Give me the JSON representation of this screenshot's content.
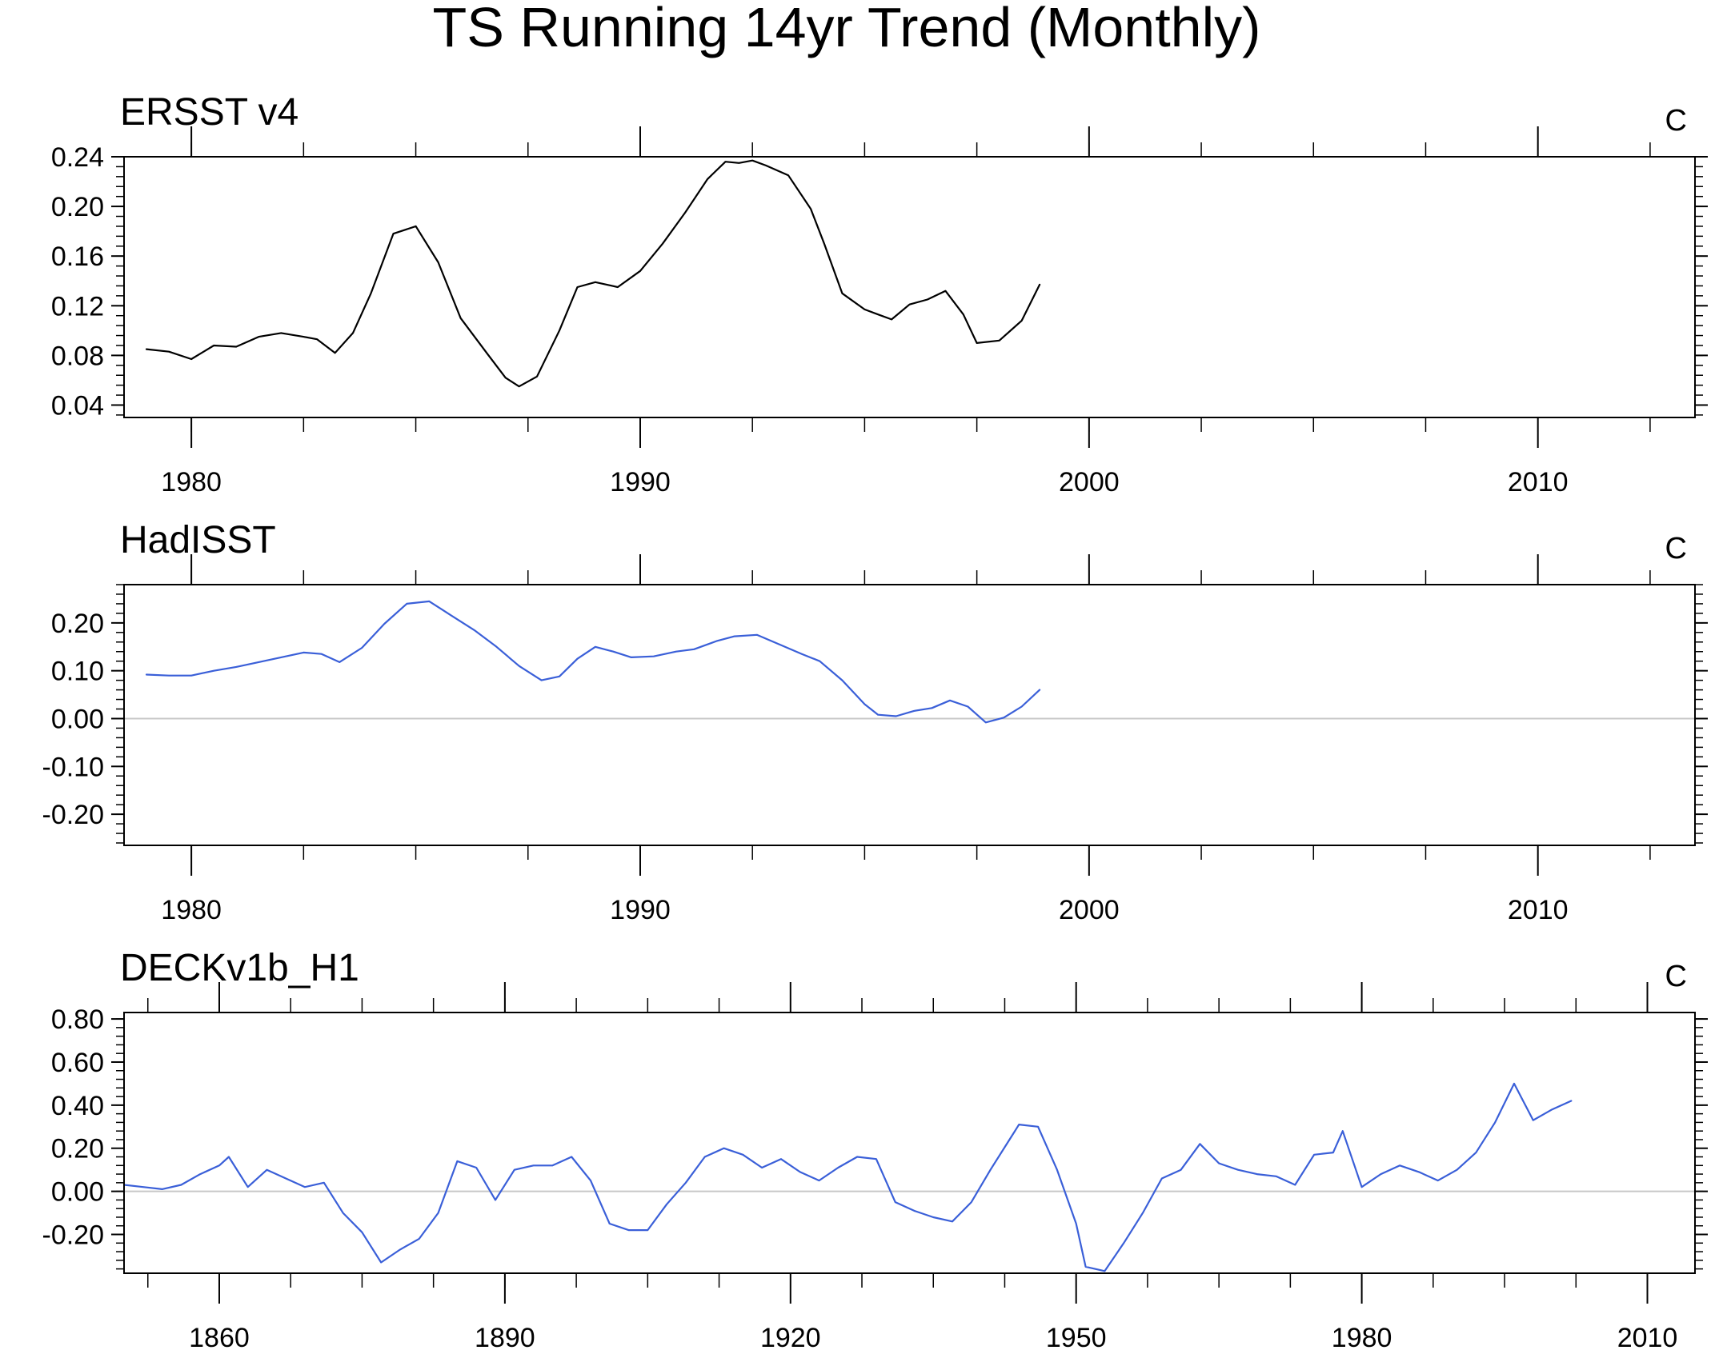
{
  "figure": {
    "title": "TS Running 14yr Trend (Monthly)"
  },
  "chart_data": [
    {
      "type": "line",
      "title": "ERSST v4",
      "units": "C",
      "xlabel": "",
      "ylabel": "",
      "xlim": [
        1978.5,
        2013.5
      ],
      "ylim": [
        0.03,
        0.24
      ],
      "x_ticks": [
        1980,
        1990,
        2000,
        2010
      ],
      "x_tick_labels": [
        "1980",
        "1990",
        "2000",
        "2010"
      ],
      "y_ticks": [
        0.04,
        0.08,
        0.12,
        0.16,
        0.2,
        0.24
      ],
      "y_tick_labels": [
        "0.04",
        "0.08",
        "0.12",
        "0.16",
        "0.20",
        "0.24"
      ],
      "zero_line": false,
      "grid": false,
      "legend": "none",
      "series": [
        {
          "color": "#000000",
          "x": [
            1979.0,
            1979.5,
            1980.0,
            1980.5,
            1981.0,
            1981.5,
            1982.0,
            1982.5,
            1982.8,
            1983.2,
            1983.6,
            1984.0,
            1984.5,
            1985.0,
            1985.5,
            1986.0,
            1986.6,
            1987.0,
            1987.3,
            1987.7,
            1988.2,
            1988.6,
            1989.0,
            1989.5,
            1990.0,
            1990.5,
            1991.0,
            1991.5,
            1991.9,
            1992.2,
            1992.5,
            1992.8,
            1993.3,
            1993.8,
            1994.1,
            1994.5,
            1995.0,
            1995.3,
            1995.6,
            1996.0,
            1996.4,
            1996.8,
            1997.2,
            1997.5,
            1998.0,
            1998.5,
            1998.9
          ],
          "y": [
            0.085,
            0.083,
            0.077,
            0.088,
            0.087,
            0.095,
            0.098,
            0.095,
            0.093,
            0.082,
            0.098,
            0.13,
            0.178,
            0.184,
            0.155,
            0.11,
            0.081,
            0.062,
            0.055,
            0.063,
            0.1,
            0.135,
            0.139,
            0.135,
            0.148,
            0.17,
            0.195,
            0.222,
            0.236,
            0.235,
            0.237,
            0.233,
            0.225,
            0.198,
            0.17,
            0.13,
            0.117,
            0.113,
            0.109,
            0.121,
            0.125,
            0.132,
            0.113,
            0.09,
            0.092,
            0.108,
            0.137
          ]
        }
      ]
    },
    {
      "type": "line",
      "title": "HadISST",
      "units": "C",
      "xlabel": "",
      "ylabel": "",
      "xlim": [
        1978.5,
        2013.5
      ],
      "ylim": [
        -0.265,
        0.28
      ],
      "x_ticks": [
        1980,
        1990,
        2000,
        2010
      ],
      "x_tick_labels": [
        "1980",
        "1990",
        "2000",
        "2010"
      ],
      "y_ticks": [
        -0.2,
        -0.1,
        0.0,
        0.1,
        0.2
      ],
      "y_tick_labels": [
        "-0.20",
        "-0.10",
        "0.00",
        "0.10",
        "0.20"
      ],
      "zero_line": true,
      "grid": false,
      "legend": "none",
      "series": [
        {
          "color": "#3a5fd8",
          "x": [
            1979.0,
            1979.5,
            1980.0,
            1980.5,
            1981.0,
            1981.5,
            1982.0,
            1982.5,
            1982.9,
            1983.3,
            1983.8,
            1984.3,
            1984.8,
            1985.3,
            1985.8,
            1986.3,
            1986.8,
            1987.3,
            1987.8,
            1988.2,
            1988.6,
            1989.0,
            1989.4,
            1989.8,
            1990.3,
            1990.8,
            1991.2,
            1991.7,
            1992.1,
            1992.6,
            1993.1,
            1993.6,
            1994.0,
            1994.5,
            1995.0,
            1995.3,
            1995.7,
            1996.1,
            1996.5,
            1996.9,
            1997.3,
            1997.7,
            1998.1,
            1998.5,
            1998.9
          ],
          "y": [
            0.092,
            0.09,
            0.09,
            0.1,
            0.108,
            0.118,
            0.128,
            0.138,
            0.135,
            0.118,
            0.148,
            0.198,
            0.24,
            0.245,
            0.215,
            0.185,
            0.15,
            0.11,
            0.08,
            0.088,
            0.125,
            0.15,
            0.14,
            0.128,
            0.13,
            0.14,
            0.145,
            0.162,
            0.172,
            0.175,
            0.155,
            0.135,
            0.12,
            0.08,
            0.03,
            0.008,
            0.005,
            0.016,
            0.022,
            0.038,
            0.025,
            -0.008,
            0.002,
            0.025,
            0.06
          ]
        }
      ]
    },
    {
      "type": "line",
      "title": "DECKv1b_H1",
      "units": "C",
      "xlabel": "",
      "ylabel": "",
      "xlim": [
        1850,
        2015
      ],
      "ylim": [
        -0.38,
        0.83
      ],
      "x_ticks": [
        1860,
        1890,
        1920,
        1950,
        1980,
        2010
      ],
      "x_tick_labels": [
        "1860",
        "1890",
        "1920",
        "1950",
        "1980",
        "2010"
      ],
      "y_ticks": [
        -0.2,
        0.0,
        0.2,
        0.4,
        0.6,
        0.8
      ],
      "y_tick_labels": [
        "-0.20",
        "0.00",
        "0.20",
        "0.40",
        "0.60",
        "0.80"
      ],
      "zero_line": true,
      "grid": false,
      "legend": "none",
      "series": [
        {
          "color": "#3a5fd8",
          "x": [
            1850,
            1852,
            1854,
            1856,
            1858,
            1860,
            1861,
            1863,
            1865,
            1867,
            1869,
            1871,
            1873,
            1875,
            1877,
            1879,
            1881,
            1883,
            1885,
            1887,
            1889,
            1891,
            1893,
            1895,
            1897,
            1899,
            1901,
            1903,
            1905,
            1907,
            1909,
            1911,
            1913,
            1915,
            1917,
            1919,
            1921,
            1923,
            1925,
            1927,
            1929,
            1931,
            1933,
            1935,
            1937,
            1939,
            1941,
            1943,
            1944,
            1946,
            1948,
            1950,
            1951,
            1953,
            1955,
            1957,
            1959,
            1961,
            1963,
            1965,
            1967,
            1969,
            1971,
            1973,
            1975,
            1977,
            1978,
            1980,
            1982,
            1984,
            1986,
            1988,
            1990,
            1992,
            1994,
            1996,
            1998,
            2000,
            2002
          ],
          "y": [
            0.03,
            0.02,
            0.01,
            0.03,
            0.08,
            0.12,
            0.16,
            0.02,
            0.1,
            0.06,
            0.02,
            0.04,
            -0.1,
            -0.19,
            -0.33,
            -0.27,
            -0.22,
            -0.1,
            0.14,
            0.11,
            -0.04,
            0.1,
            0.12,
            0.12,
            0.16,
            0.05,
            -0.15,
            -0.18,
            -0.18,
            -0.06,
            0.04,
            0.16,
            0.2,
            0.17,
            0.11,
            0.15,
            0.09,
            0.05,
            0.11,
            0.16,
            0.15,
            -0.05,
            -0.09,
            -0.12,
            -0.14,
            -0.05,
            0.1,
            0.24,
            0.31,
            0.3,
            0.1,
            -0.15,
            -0.35,
            -0.37,
            -0.24,
            -0.1,
            0.06,
            0.1,
            0.22,
            0.13,
            0.1,
            0.08,
            0.07,
            0.03,
            0.17,
            0.18,
            0.28,
            0.02,
            0.08,
            0.12,
            0.09,
            0.05,
            0.1,
            0.18,
            0.32,
            0.5,
            0.33,
            0.38,
            0.42
          ]
        }
      ]
    }
  ]
}
